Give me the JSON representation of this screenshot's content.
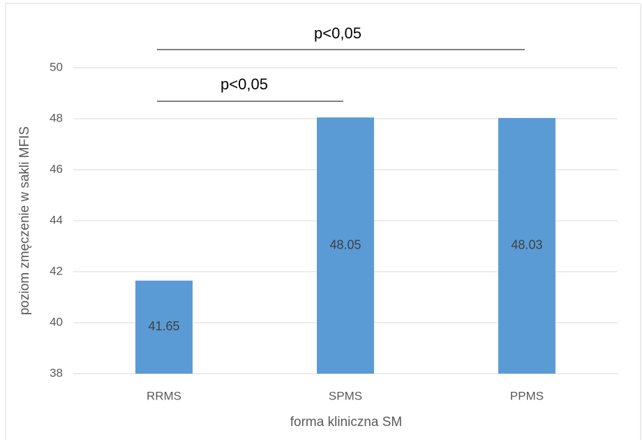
{
  "chart_data": {
    "type": "bar",
    "categories": [
      "RRMS",
      "SPMS",
      "PPMS"
    ],
    "values": [
      41.65,
      48.05,
      48.03
    ],
    "color": "#5b9bd5",
    "ylim": [
      38,
      50
    ],
    "yticks": [
      38,
      40,
      42,
      44,
      46,
      48,
      50
    ],
    "grid": true,
    "xlabel": "forma kliniczna SM",
    "ylabel": "poziom zmęczenie w sakli MFIS",
    "annotations": [
      "p<0,05",
      "p<0,05"
    ]
  }
}
